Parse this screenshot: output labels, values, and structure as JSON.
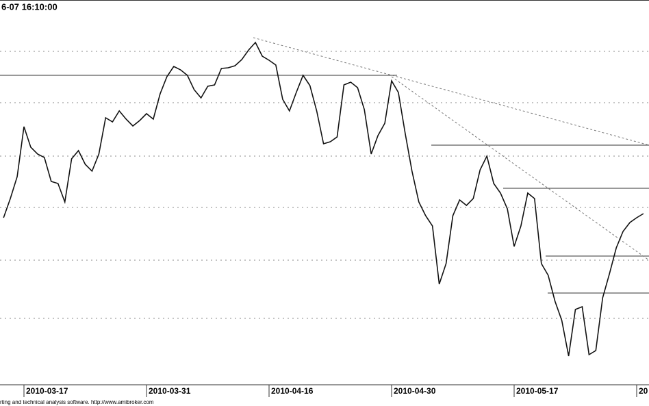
{
  "chart_data": {
    "type": "line",
    "title": "6-07 16:10:00",
    "footer": "rting and technical analysis software. http://www.amibroker.com",
    "color": "#111111",
    "ylim": [
      52,
      600
    ],
    "categories": [
      null,
      null,
      null,
      "2010-03-17",
      null,
      null,
      null,
      null,
      null,
      null,
      null,
      null,
      null,
      null,
      null,
      null,
      null,
      null,
      null,
      null,
      null,
      "2010-03-31",
      null,
      null,
      null,
      null,
      null,
      null,
      null,
      null,
      null,
      null,
      null,
      null,
      null,
      null,
      null,
      null,
      null,
      "2010-04-16",
      null,
      null,
      null,
      null,
      null,
      null,
      null,
      null,
      null,
      null,
      null,
      null,
      null,
      null,
      null,
      null,
      null,
      "2010-04-30",
      null,
      null,
      null,
      null,
      null,
      null,
      null,
      null,
      null,
      null,
      null,
      null,
      null,
      null,
      null,
      null,
      null,
      "2010-05-17",
      null,
      null,
      null,
      null,
      null,
      null,
      null,
      null,
      null,
      null,
      null,
      null,
      null,
      null,
      null,
      null,
      null,
      "20",
      null
    ],
    "values": [
      282,
      310,
      342,
      415,
      385,
      375,
      370,
      335,
      332,
      305,
      368,
      380,
      360,
      350,
      375,
      428,
      422,
      438,
      426,
      416,
      424,
      434,
      426,
      463,
      488,
      503,
      498,
      490,
      469,
      457,
      474,
      476,
      500,
      501,
      504,
      513,
      527,
      538,
      518,
      512,
      505,
      455,
      438,
      465,
      490,
      475,
      438,
      390,
      393,
      400,
      476,
      480,
      472,
      440,
      375,
      402,
      420,
      482,
      465,
      405,
      350,
      305,
      285,
      270,
      185,
      215,
      285,
      308,
      300,
      310,
      352,
      372,
      332,
      318,
      295,
      240,
      270,
      318,
      310,
      215,
      198,
      160,
      132,
      80,
      148,
      152,
      82,
      88,
      165,
      200,
      238,
      262,
      275,
      282,
      288
    ]
  }
}
